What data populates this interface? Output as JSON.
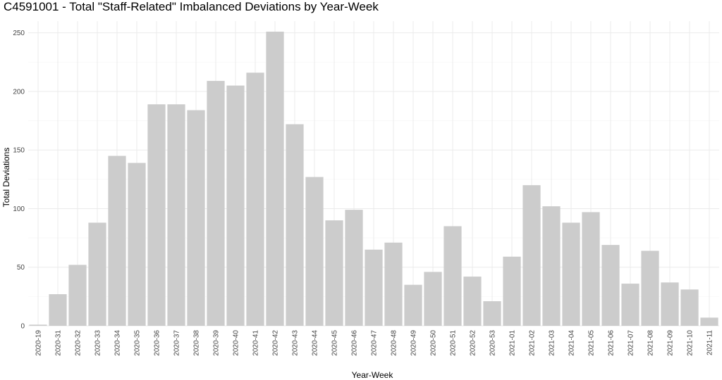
{
  "chart_data": {
    "type": "bar",
    "title": "C4591001 - Total \"Staff-Related\" Imbalanced Deviations by Year-Week",
    "xlabel": "Year-Week",
    "ylabel": "Total Deviations",
    "ylim": [
      0,
      260
    ],
    "yticks": [
      0,
      50,
      100,
      150,
      200,
      250
    ],
    "ytick_labels": [
      "0",
      "50",
      "100",
      "150",
      "200",
      "250"
    ],
    "grid": true,
    "legend": "none",
    "bar_color": "#cccccc",
    "categories": [
      "2020-19",
      "2020-31",
      "2020-32",
      "2020-33",
      "2020-34",
      "2020-35",
      "2020-36",
      "2020-37",
      "2020-38",
      "2020-39",
      "2020-40",
      "2020-41",
      "2020-42",
      "2020-43",
      "2020-44",
      "2020-45",
      "2020-46",
      "2020-47",
      "2020-48",
      "2020-49",
      "2020-50",
      "2020-51",
      "2020-52",
      "2020-53",
      "2021-01",
      "2021-02",
      "2021-03",
      "2021-04",
      "2021-05",
      "2021-06",
      "2021-07",
      "2021-08",
      "2021-09",
      "2021-10",
      "2021-11"
    ],
    "values": [
      1,
      27,
      52,
      88,
      145,
      139,
      189,
      189,
      184,
      209,
      205,
      216,
      251,
      172,
      127,
      90,
      99,
      65,
      71,
      35,
      46,
      85,
      42,
      21,
      59,
      120,
      102,
      88,
      97,
      69,
      36,
      64,
      37,
      31,
      7
    ]
  }
}
